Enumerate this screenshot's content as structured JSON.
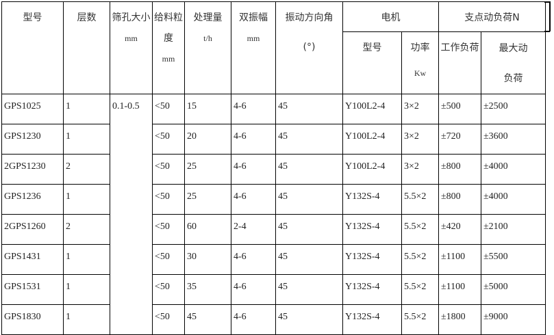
{
  "headers": {
    "model": "型号",
    "layers": "层数",
    "sieve": "筛孔大小",
    "sieve_unit": "mm",
    "feed": "给料粒度",
    "feed_unit": "mm",
    "capacity": "处理量",
    "capacity_unit": "t/h",
    "amplitude": "双振幅",
    "amplitude_unit": "mm",
    "angle": "振动方向角",
    "angle_unit": "(°)",
    "motor": "电机",
    "motor_model": "型号",
    "motor_power": "功率",
    "motor_power_unit": "Kw",
    "load": "支点动负荷N",
    "load_work": "工作负荷",
    "load_max": "最大动负荷"
  },
  "sieve_value": "0.1-0.5",
  "rows": [
    {
      "model": "GPS1025",
      "layers": "1",
      "feed": "<50",
      "capacity": "15",
      "amplitude": "4-6",
      "angle": "45",
      "motor": "Y100L2-4",
      "power": "3×2",
      "work": "±500",
      "max": "±2500"
    },
    {
      "model": "GPS1230",
      "layers": "1",
      "feed": "<50",
      "capacity": "20",
      "amplitude": "4-6",
      "angle": "45",
      "motor": "Y100L2-4",
      "power": "3×2",
      "work": "±720",
      "max": "±3600"
    },
    {
      "model": "2GPS1230",
      "layers": "2",
      "feed": "<50",
      "capacity": "25",
      "amplitude": "4-6",
      "angle": "45",
      "motor": "Y100L2-4",
      "power": "3×2",
      "work": "±800",
      "max": "±4000"
    },
    {
      "model": "GPS1236",
      "layers": "1",
      "feed": "<50",
      "capacity": "25",
      "amplitude": "4-6",
      "angle": "45",
      "motor": "Y132S-4",
      "power": "5.5×2",
      "work": "±800",
      "max": "±4000"
    },
    {
      "model": "2GPS1260",
      "layers": "2",
      "feed": "<50",
      "capacity": "60",
      "amplitude": "2-4",
      "angle": "45",
      "motor": "Y132S-4",
      "power": "5.5×2",
      "work": "±420",
      "max": "±2100"
    },
    {
      "model": "GPS1431",
      "layers": "1",
      "feed": "<50",
      "capacity": "30",
      "amplitude": "4-6",
      "angle": "45",
      "motor": "Y132S-4",
      "power": "5.5×2",
      "work": "±1100",
      "max": "±5500"
    },
    {
      "model": "GPS1531",
      "layers": "1",
      "feed": "<50",
      "capacity": "35",
      "amplitude": "4-6",
      "angle": "45",
      "motor": "Y132S-4",
      "power": "5.5×2",
      "work": "±1100",
      "max": "±5000"
    },
    {
      "model": "GPS1830",
      "layers": "1",
      "feed": "<50",
      "capacity": "45",
      "amplitude": "4-6",
      "angle": "45",
      "motor": "Y132S-4",
      "power": "5.5×2",
      "work": "±1800",
      "max": "±9000"
    }
  ]
}
